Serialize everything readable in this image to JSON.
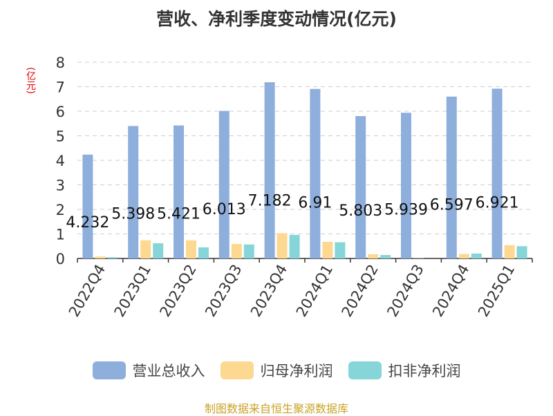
{
  "chart_data": {
    "type": "bar",
    "title": "营收、净利季度变动情况(亿元)",
    "unit_label": "(亿元)",
    "categories": [
      "2022Q4",
      "2023Q1",
      "2023Q2",
      "2023Q3",
      "2023Q4",
      "2024Q1",
      "2024Q2",
      "2024Q3",
      "2024Q4",
      "2025Q1"
    ],
    "series": [
      {
        "name": "营业总收入",
        "color": "#8eaedb",
        "values": [
          4.232,
          5.398,
          5.421,
          6.013,
          7.182,
          6.91,
          5.803,
          5.939,
          6.597,
          6.921
        ],
        "labels": [
          "4.232",
          "5.398",
          "5.421",
          "6.013",
          "7.182",
          "6.91",
          "5.803",
          "5.939",
          "6.597",
          "6.921"
        ]
      },
      {
        "name": "归母净利润",
        "color": "#fdd891",
        "values": [
          0.08,
          0.74,
          0.74,
          0.59,
          1.03,
          0.68,
          0.17,
          0.01,
          0.18,
          0.54
        ]
      },
      {
        "name": "扣非净利润",
        "color": "#86d5d8",
        "values": [
          0.05,
          0.62,
          0.45,
          0.57,
          0.96,
          0.66,
          0.14,
          0.0,
          0.2,
          0.5
        ]
      }
    ],
    "ylim": [
      0,
      8
    ],
    "yticks": [
      "0",
      "1",
      "2",
      "3",
      "4",
      "5",
      "6",
      "7",
      "8"
    ],
    "grid": true,
    "legend_position": "bottom"
  },
  "source": "制图数据来自恒生聚源数据库"
}
